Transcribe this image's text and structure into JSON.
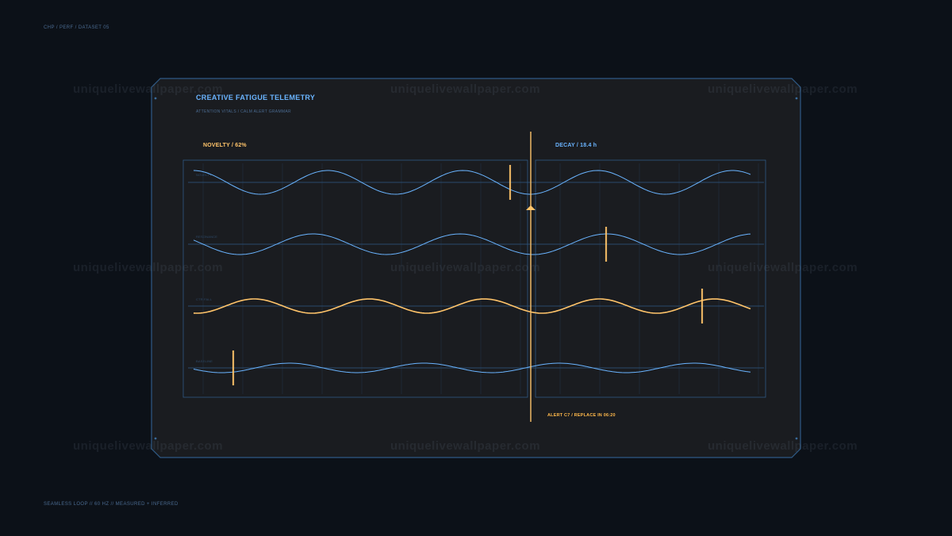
{
  "header": {
    "breadcrumb": "CHP / PERF / DATASET 05"
  },
  "panel": {
    "title": "CREATIVE FATIGUE TELEMETRY",
    "subtitle": "ATTENTION VITALS / CALM ALERT GRAMMAR",
    "novelty": "NOVELTY / 62%",
    "decay": "DECAY / 18.4 h",
    "alert": "ALERT C7 / REPLACE IN 06:20"
  },
  "channels": [
    {
      "label": "NOVELTY",
      "color": "#6ab4ff"
    },
    {
      "label": "RESONANCE",
      "color": "#6ab4ff"
    },
    {
      "label": "CTR FALL",
      "color": "#ffc46a"
    },
    {
      "label": "BASELINE",
      "color": "#6ab4ff"
    }
  ],
  "footer": {
    "status": "SEAMLESS LOOP // 60 HZ // MEASURED + INFERRED"
  },
  "watermark": "uniquelivewallpaper.com",
  "colors": {
    "background": "#0c1118",
    "panel": "#1a1c20",
    "frame": "#2f5a86",
    "accent_blue": "#6ab4ff",
    "accent_amber": "#ffc46a"
  }
}
